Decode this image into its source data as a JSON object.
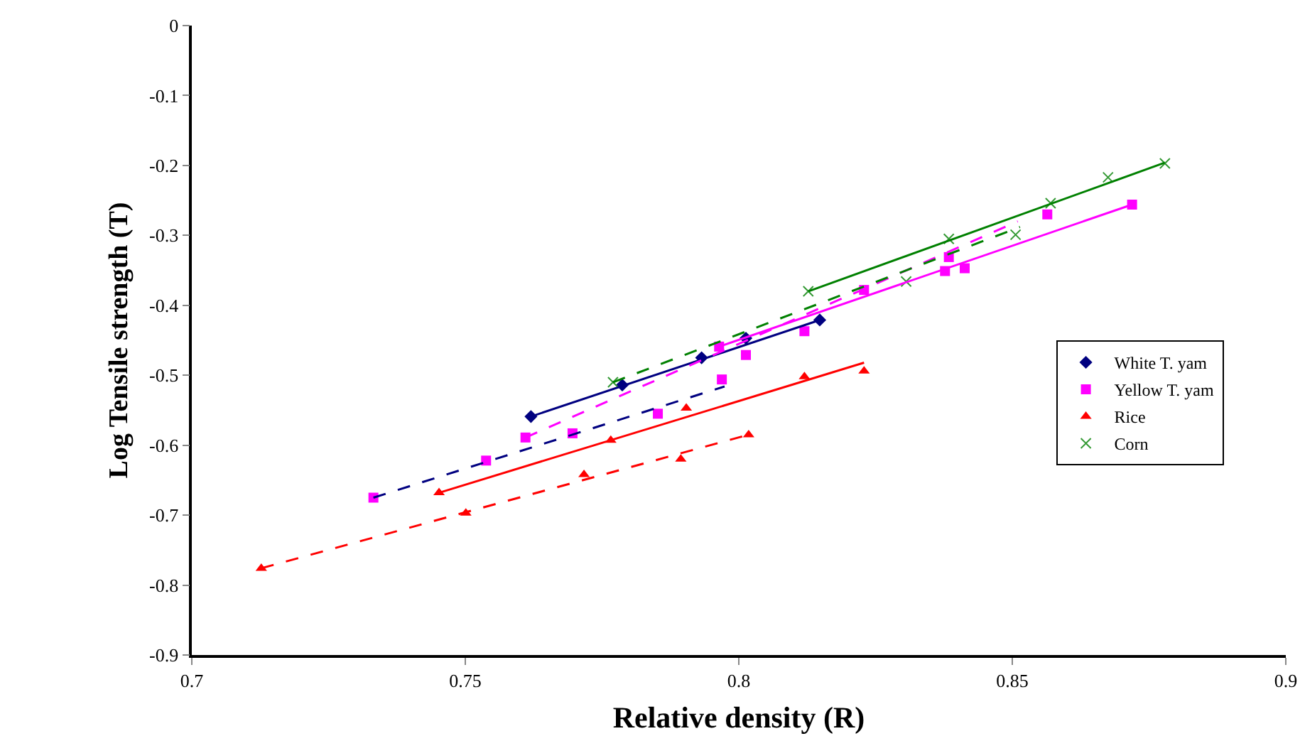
{
  "chart_data": {
    "type": "scatter",
    "xlabel": "Relative density (R)",
    "ylabel": "Log Tensile strength (T)",
    "xlim": [
      0.7,
      0.9
    ],
    "xticks": [
      0.7,
      0.75,
      0.8,
      0.85,
      0.9
    ],
    "ylim": [
      -0.9,
      0
    ],
    "yticks": [
      {
        "value": 0,
        "label": "0"
      },
      -0.1,
      -0.2,
      -0.3,
      -0.4,
      -0.5,
      -0.6,
      -0.7,
      -0.8,
      -0.9
    ],
    "grid": false,
    "legend": "right",
    "series": [
      {
        "name": "White T. yam",
        "marker": "diamond",
        "color": "#000080",
        "x": [
          0.762,
          0.7787,
          0.7932,
          0.8013,
          0.8148
        ],
        "values": [
          -0.559,
          -0.514,
          -0.475,
          -0.447,
          -0.421
        ]
      },
      {
        "name": "Yellow T. yam",
        "marker": "square",
        "color": "#ff00ff",
        "x": [
          0.7332,
          0.7538,
          0.761,
          0.7696,
          0.7852,
          0.7969,
          0.7964,
          0.8013,
          0.812,
          0.8229,
          0.8377,
          0.8413,
          0.8384,
          0.8564,
          0.8719
        ],
        "values": [
          -0.675,
          -0.622,
          -0.589,
          -0.583,
          -0.555,
          -0.506,
          -0.459,
          -0.471,
          -0.437,
          -0.378,
          -0.351,
          -0.347,
          -0.331,
          -0.27,
          -0.256
        ]
      },
      {
        "name": "Rice",
        "marker": "triangle",
        "color": "#ff0000",
        "x": [
          0.7127,
          0.7452,
          0.7501,
          0.7717,
          0.7766,
          0.7894,
          0.7904,
          0.8018,
          0.812,
          0.8229
        ],
        "values": [
          -0.776,
          -0.668,
          -0.697,
          -0.642,
          -0.593,
          -0.62,
          -0.547,
          -0.585,
          -0.502,
          -0.494
        ]
      },
      {
        "name": "Corn",
        "marker": "cross",
        "color": "#339933",
        "x": [
          0.777,
          0.8127,
          0.8306,
          0.8384,
          0.8506,
          0.857,
          0.8675,
          0.8779
        ],
        "values": [
          -0.51,
          -0.38,
          -0.366,
          -0.305,
          -0.299,
          -0.254,
          -0.217,
          -0.197
        ]
      },
      {
        "type": "line",
        "marker": "none",
        "line_style": "solid",
        "color": "#000080",
        "x": [
          0.762,
          0.8148
        ],
        "values": [
          -0.559,
          -0.421
        ]
      },
      {
        "type": "line",
        "marker": "none",
        "line_style": "dashed",
        "color": "#000080",
        "x": [
          0.7332,
          0.7974
        ],
        "values": [
          -0.675,
          -0.516
        ]
      },
      {
        "type": "line",
        "marker": "none",
        "line_style": "solid",
        "color": "#ff00ff",
        "x": [
          0.7964,
          0.8719
        ],
        "values": [
          -0.459,
          -0.256
        ]
      },
      {
        "type": "line",
        "marker": "none",
        "line_style": "dashed",
        "color": "#ff00ff",
        "x": [
          0.761,
          0.851
        ],
        "values": [
          -0.589,
          -0.28
        ]
      },
      {
        "type": "line",
        "marker": "none",
        "line_style": "solid",
        "color": "#ff0000",
        "x": [
          0.7452,
          0.8229
        ],
        "values": [
          -0.668,
          -0.482
        ]
      },
      {
        "type": "line",
        "marker": "none",
        "line_style": "dashed",
        "color": "#ff0000",
        "x": [
          0.7127,
          0.8018
        ],
        "values": [
          -0.776,
          -0.585
        ]
      },
      {
        "type": "line",
        "marker": "none",
        "line_style": "solid",
        "color": "#008000",
        "x": [
          0.8127,
          0.8779
        ],
        "values": [
          -0.38,
          -0.196
        ]
      },
      {
        "type": "line",
        "marker": "none",
        "line_style": "dashed",
        "color": "#008000",
        "x": [
          0.777,
          0.8514
        ],
        "values": [
          -0.51,
          -0.288
        ]
      }
    ]
  }
}
